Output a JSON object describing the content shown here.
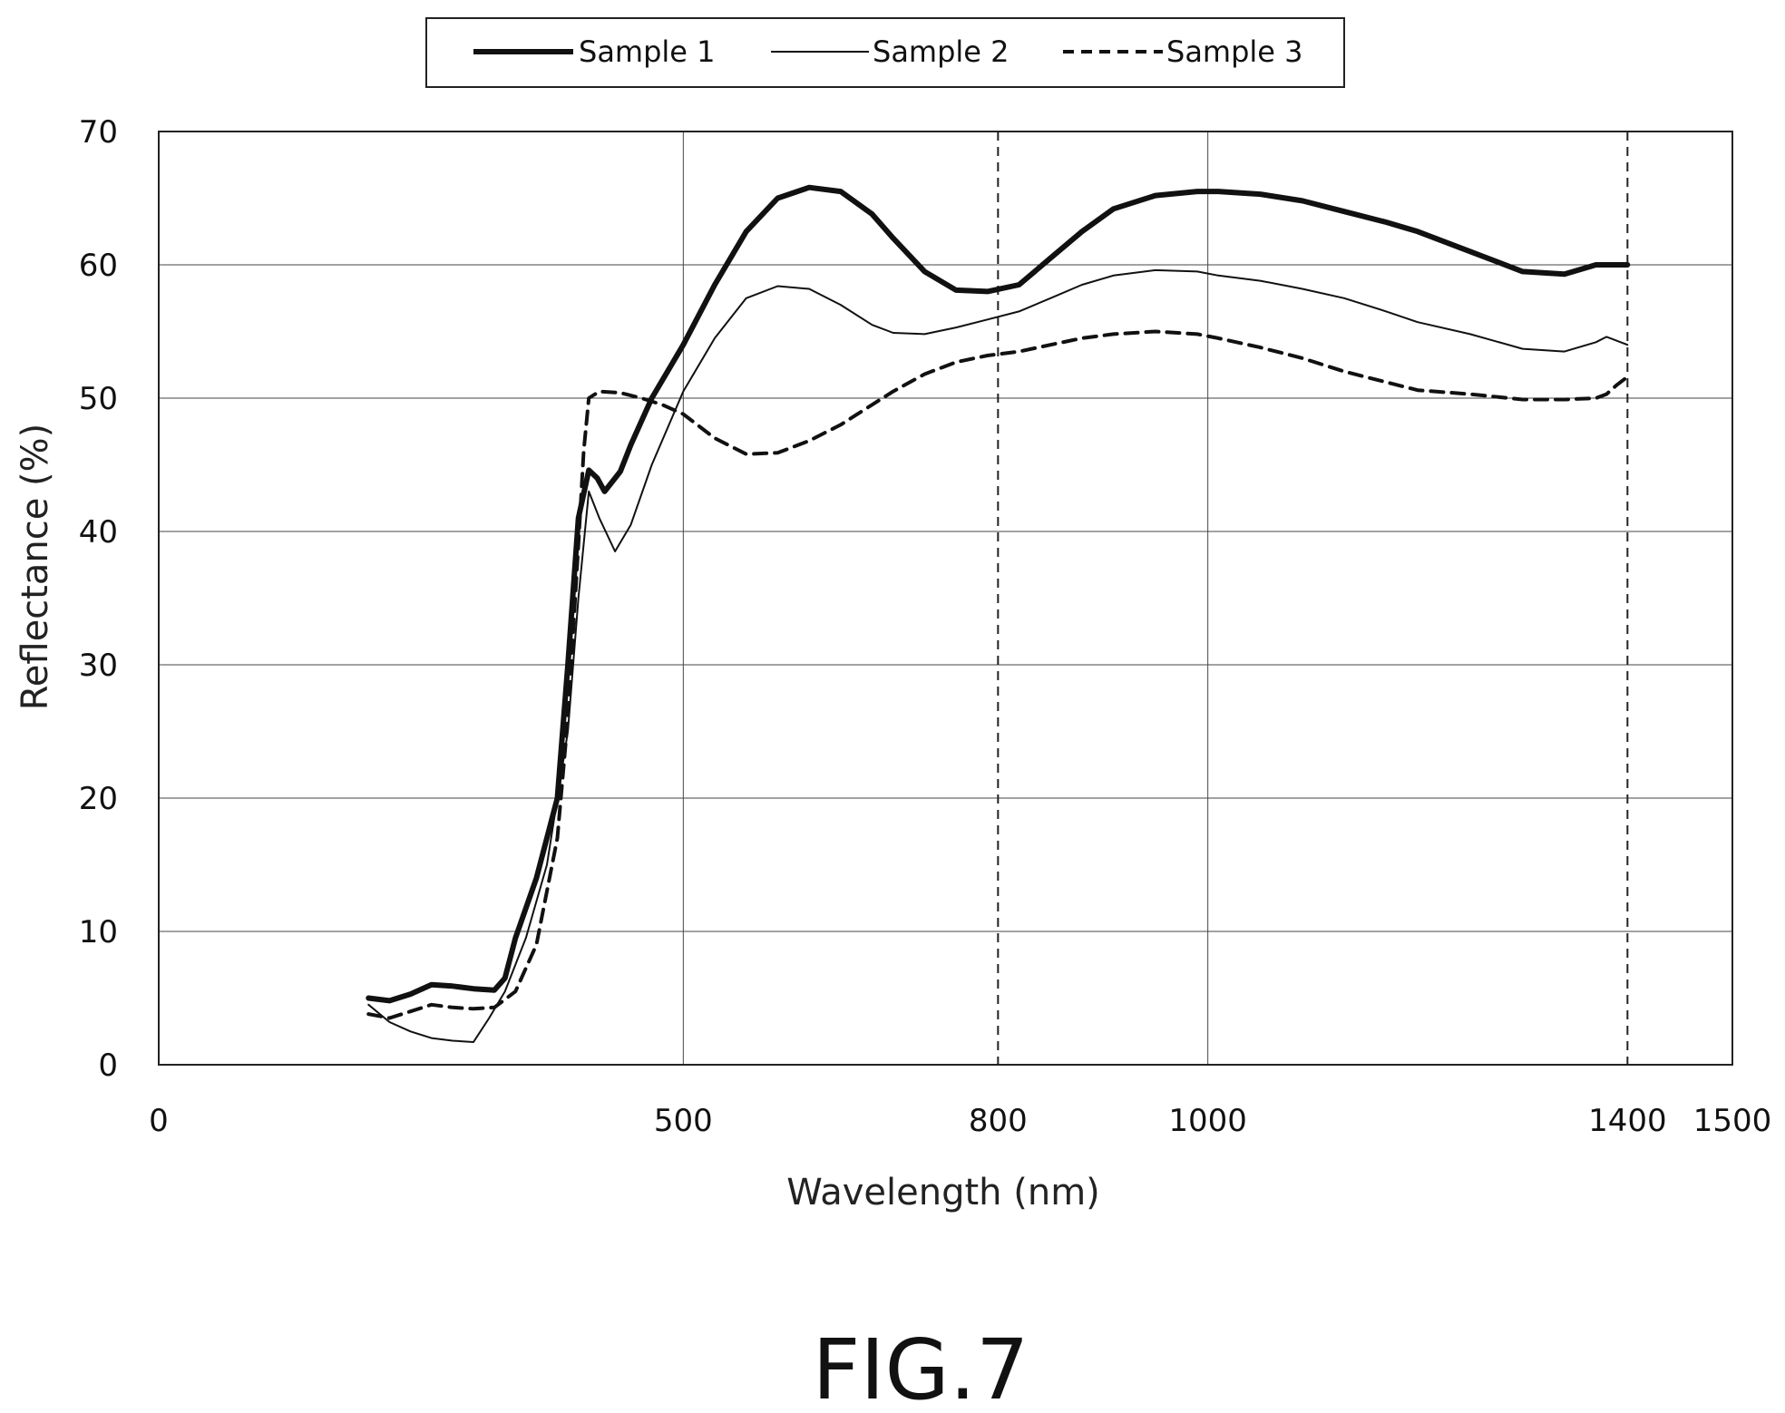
{
  "figure_label": "FIG.7",
  "chart_data": {
    "type": "line",
    "title": "",
    "xlabel": "Wavelength (nm)",
    "ylabel": "Reflectance (%)",
    "xlim": [
      0,
      1500
    ],
    "ylim": [
      0,
      70
    ],
    "x_ticks": [
      0,
      500,
      800,
      1000,
      1400,
      1500
    ],
    "x_tick_labels": [
      "0",
      "500",
      "800",
      "1000",
      "1400",
      "1500"
    ],
    "y_ticks": [
      0,
      10,
      20,
      30,
      40,
      50,
      60,
      70
    ],
    "y_tick_labels": [
      "0",
      "10",
      "20",
      "30",
      "40",
      "50",
      "60",
      "70"
    ],
    "grid": {
      "horizontal": true,
      "vertical_solid": [
        500,
        1000
      ],
      "vertical_dashed": [
        800,
        1400
      ]
    },
    "legend_position": "top-center",
    "series": [
      {
        "name": "Sample 1",
        "style": "thick-solid",
        "x": [
          200,
          220,
          240,
          260,
          280,
          300,
          320,
          330,
          340,
          360,
          380,
          390,
          400,
          410,
          418,
          425,
          440,
          450,
          470,
          500,
          530,
          560,
          590,
          620,
          650,
          680,
          700,
          730,
          760,
          790,
          820,
          850,
          880,
          910,
          950,
          990,
          1010,
          1050,
          1090,
          1130,
          1170,
          1200,
          1250,
          1300,
          1340,
          1370,
          1380,
          1400
        ],
        "y": [
          5.0,
          4.8,
          5.3,
          6.0,
          5.9,
          5.7,
          5.6,
          6.5,
          9.5,
          14.0,
          20.0,
          30.0,
          41.0,
          44.6,
          44.0,
          43.0,
          44.5,
          46.5,
          50.0,
          54.0,
          58.5,
          62.5,
          65.0,
          65.8,
          65.5,
          63.8,
          62.0,
          59.5,
          58.1,
          58.0,
          58.5,
          60.5,
          62.5,
          64.2,
          65.2,
          65.5,
          65.5,
          65.3,
          64.8,
          64.0,
          63.2,
          62.5,
          61.0,
          59.5,
          59.3,
          60.0,
          60.0,
          60.0
        ]
      },
      {
        "name": "Sample 2",
        "style": "thin-solid",
        "x": [
          200,
          220,
          240,
          260,
          280,
          300,
          315,
          330,
          350,
          370,
          390,
          400,
          410,
          420,
          435,
          450,
          470,
          500,
          530,
          560,
          590,
          620,
          650,
          680,
          700,
          730,
          760,
          790,
          820,
          850,
          880,
          910,
          950,
          990,
          1010,
          1050,
          1090,
          1130,
          1170,
          1200,
          1250,
          1300,
          1340,
          1370,
          1380,
          1390,
          1400
        ],
        "y": [
          4.5,
          3.2,
          2.5,
          2.0,
          1.8,
          1.7,
          3.5,
          5.5,
          9.5,
          15.0,
          25.0,
          35.0,
          43.0,
          41.0,
          38.5,
          40.5,
          45.0,
          50.5,
          54.5,
          57.5,
          58.4,
          58.2,
          57.0,
          55.5,
          54.9,
          54.8,
          55.3,
          55.9,
          56.5,
          57.5,
          58.5,
          59.2,
          59.6,
          59.5,
          59.2,
          58.8,
          58.2,
          57.5,
          56.5,
          55.7,
          54.8,
          53.7,
          53.5,
          54.2,
          54.6,
          54.3,
          54.0
        ]
      },
      {
        "name": "Sample 3",
        "style": "dashed",
        "x": [
          200,
          220,
          240,
          260,
          280,
          300,
          320,
          340,
          360,
          380,
          390,
          400,
          405,
          410,
          420,
          440,
          460,
          480,
          500,
          530,
          560,
          590,
          620,
          650,
          680,
          700,
          730,
          760,
          790,
          820,
          850,
          880,
          910,
          950,
          990,
          1010,
          1050,
          1090,
          1130,
          1170,
          1200,
          1250,
          1300,
          1340,
          1370,
          1380,
          1390,
          1400
        ],
        "y": [
          3.8,
          3.5,
          4.0,
          4.5,
          4.3,
          4.2,
          4.3,
          5.5,
          9.0,
          17.0,
          26.0,
          39.0,
          46.0,
          50.0,
          50.5,
          50.4,
          50.0,
          49.5,
          48.8,
          47.0,
          45.8,
          45.9,
          46.8,
          48.0,
          49.5,
          50.5,
          51.8,
          52.7,
          53.2,
          53.5,
          54.0,
          54.5,
          54.8,
          55.0,
          54.8,
          54.5,
          53.8,
          53.0,
          52.0,
          51.2,
          50.6,
          50.3,
          49.9,
          49.9,
          50.0,
          50.3,
          51.0,
          51.6
        ]
      }
    ]
  }
}
